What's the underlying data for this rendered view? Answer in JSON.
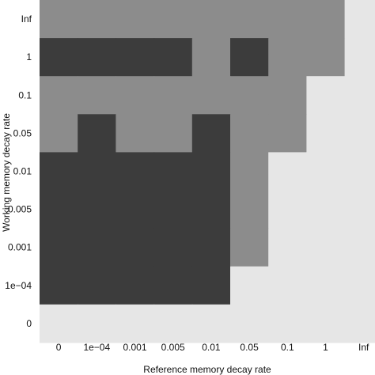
{
  "chart_data": {
    "type": "heatmap",
    "xlabel": "Reference memory decay rate",
    "ylabel": "Working memory decay rate",
    "x_categories": [
      "0",
      "1e−04",
      "0.001",
      "0.005",
      "0.01",
      "0.05",
      "0.1",
      "1",
      "Inf"
    ],
    "y_categories": [
      "0",
      "1e−04",
      "0.001",
      "0.005",
      "0.01",
      "0.05",
      "0.1",
      "1",
      "Inf"
    ],
    "levels": {
      "1": "#e6e6e6",
      "2": "#8c8c8c",
      "3": "#3c3c3c"
    },
    "rows": [
      {
        "y": "Inf",
        "values": [
          2,
          2,
          2,
          2,
          2,
          2,
          2,
          2,
          1
        ]
      },
      {
        "y": "1",
        "values": [
          3,
          3,
          3,
          3,
          2,
          3,
          2,
          2,
          1
        ]
      },
      {
        "y": "0.1",
        "values": [
          2,
          2,
          2,
          2,
          2,
          2,
          2,
          1,
          1
        ]
      },
      {
        "y": "0.05",
        "values": [
          2,
          3,
          2,
          2,
          3,
          2,
          2,
          1,
          1
        ]
      },
      {
        "y": "0.01",
        "values": [
          3,
          3,
          3,
          3,
          3,
          2,
          1,
          1,
          1
        ]
      },
      {
        "y": "0.005",
        "values": [
          3,
          3,
          3,
          3,
          3,
          2,
          1,
          1,
          1
        ]
      },
      {
        "y": "0.001",
        "values": [
          3,
          3,
          3,
          3,
          3,
          2,
          1,
          1,
          1
        ]
      },
      {
        "y": "1e−04",
        "values": [
          3,
          3,
          3,
          3,
          3,
          1,
          1,
          1,
          1
        ]
      },
      {
        "y": "0",
        "values": [
          1,
          1,
          1,
          1,
          1,
          1,
          1,
          1,
          1
        ]
      }
    ]
  }
}
